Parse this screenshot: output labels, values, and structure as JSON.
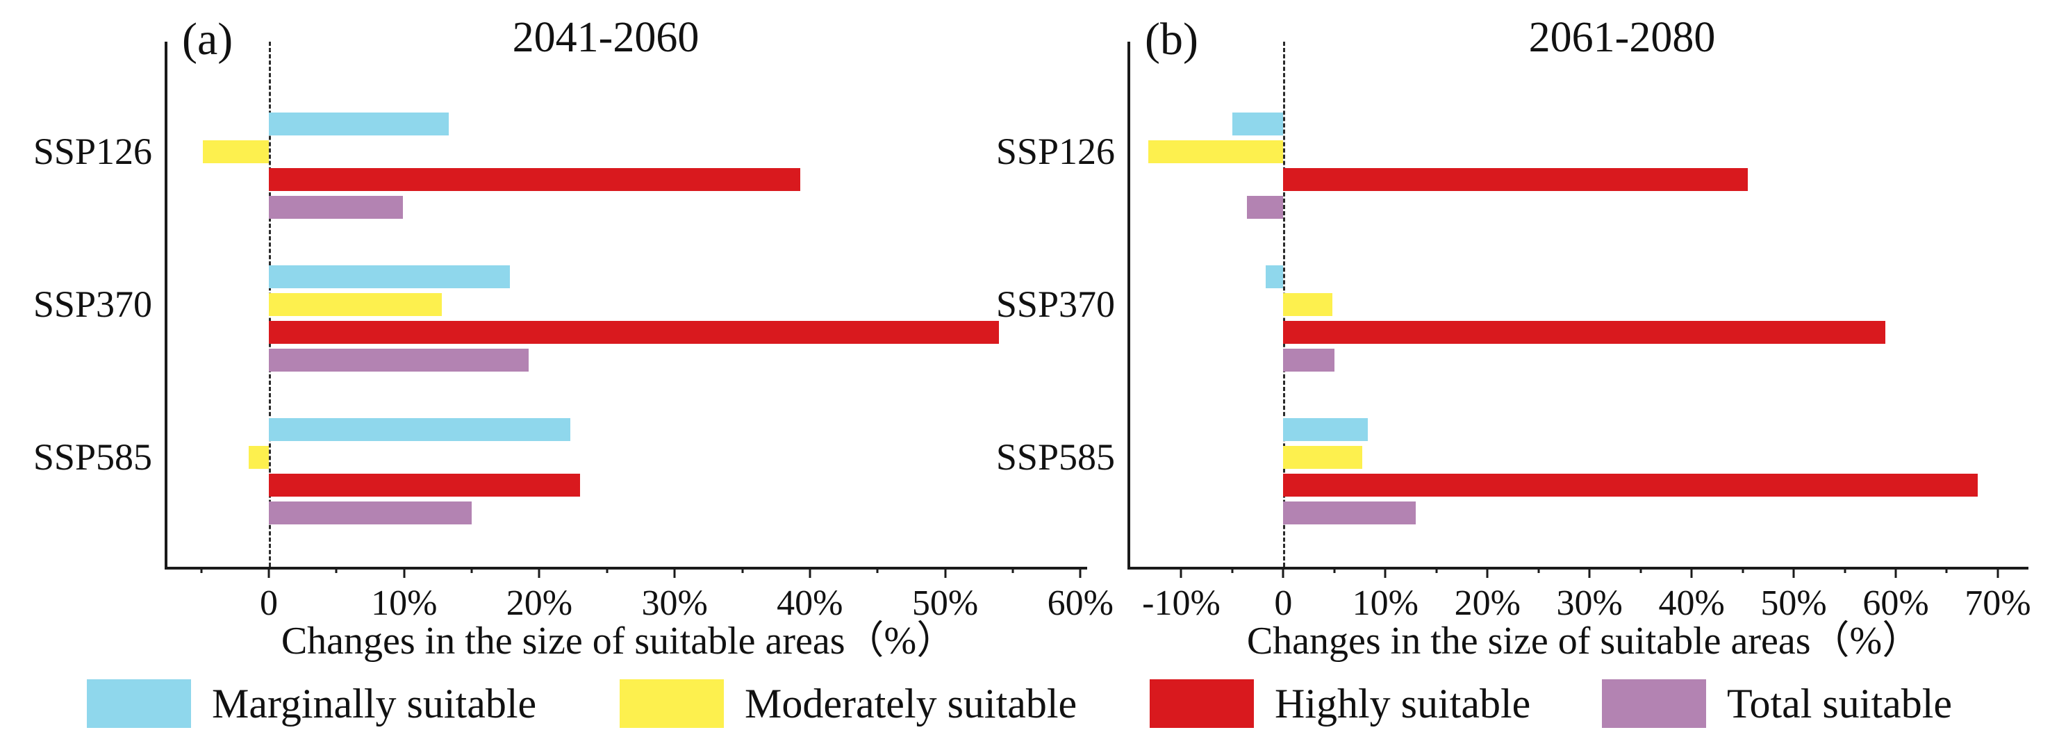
{
  "figure": {
    "legend": {
      "items": [
        {
          "name": "marginally-suitable",
          "label": "Marginally suitable",
          "color": "#8FD7EC"
        },
        {
          "name": "moderately-suitable",
          "label": "Moderately suitable",
          "color": "#FDF04E"
        },
        {
          "name": "highly-suitable",
          "label": "Highly suitable",
          "color": "#D9191E"
        },
        {
          "name": "total-suitable",
          "label": "Total suitable",
          "color": "#B383B2"
        }
      ]
    }
  },
  "chart_data": [
    {
      "id": "a",
      "type": "bar",
      "orientation": "horizontal",
      "panel_label": "(a)",
      "title": "2041-2060",
      "xlabel": "Changes in the size of suitable areas（%）",
      "categories": [
        "SSP126",
        "SSP370",
        "SSP585"
      ],
      "series": [
        {
          "name": "Marginally suitable",
          "values": [
            13.3,
            17.8,
            22.3
          ]
        },
        {
          "name": "Moderately suitable",
          "values": [
            -4.9,
            12.8,
            -1.5
          ]
        },
        {
          "name": "Highly suitable",
          "values": [
            39.3,
            54.0,
            23.0
          ]
        },
        {
          "name": "Total suitable",
          "values": [
            9.9,
            19.2,
            15.0
          ]
        }
      ],
      "xlim": [
        -7.5,
        60.5
      ],
      "major_ticks": [
        {
          "v": 0,
          "label": "0"
        },
        {
          "v": 10,
          "label": "10%"
        },
        {
          "v": 20,
          "label": "20%"
        },
        {
          "v": 30,
          "label": "30%"
        },
        {
          "v": 40,
          "label": "40%"
        },
        {
          "v": 50,
          "label": "50%"
        },
        {
          "v": 60,
          "label": "60%"
        }
      ],
      "minor_ticks": [
        -5,
        5,
        15,
        25,
        35,
        45,
        55
      ],
      "zero_line": true,
      "grid": false,
      "legend_position": "bottom-shared"
    },
    {
      "id": "b",
      "type": "bar",
      "orientation": "horizontal",
      "panel_label": "(b)",
      "title": "2061-2080",
      "xlabel": "Changes in the size of suitable areas（%）",
      "categories": [
        "SSP126",
        "SSP370",
        "SSP585"
      ],
      "series": [
        {
          "name": "Marginally suitable",
          "values": [
            -5.0,
            -1.7,
            8.3
          ]
        },
        {
          "name": "Moderately suitable",
          "values": [
            -13.2,
            4.8,
            7.7
          ]
        },
        {
          "name": "Highly suitable",
          "values": [
            45.5,
            59.0,
            68.0
          ]
        },
        {
          "name": "Total suitable",
          "values": [
            -3.6,
            5.0,
            13.0
          ]
        }
      ],
      "xlim": [
        -15,
        73
      ],
      "major_ticks": [
        {
          "v": -10,
          "label": "-10%"
        },
        {
          "v": 0,
          "label": "0"
        },
        {
          "v": 10,
          "label": "10%"
        },
        {
          "v": 20,
          "label": "20%"
        },
        {
          "v": 30,
          "label": "30%"
        },
        {
          "v": 40,
          "label": "40%"
        },
        {
          "v": 50,
          "label": "50%"
        },
        {
          "v": 60,
          "label": "60%"
        },
        {
          "v": 70,
          "label": "70%"
        }
      ],
      "minor_ticks": [
        -5,
        5,
        15,
        25,
        35,
        45,
        55,
        65
      ],
      "zero_line": true,
      "grid": false,
      "legend_position": "bottom-shared"
    }
  ]
}
